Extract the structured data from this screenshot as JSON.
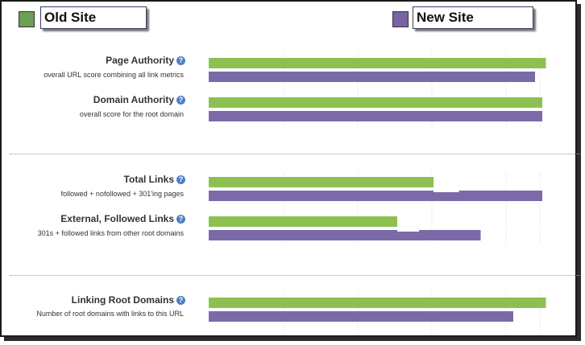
{
  "legend": {
    "old": {
      "label": "Old Site",
      "color": "#6a9f55"
    },
    "new": {
      "label": "New Site",
      "color": "#7b62a3"
    }
  },
  "metrics": [
    {
      "title": "Page Authority",
      "subtitle": "overall URL score combining all link metrics",
      "help_icon": "question-icon"
    },
    {
      "title": "Domain Authority",
      "subtitle": "overall score for the root domain",
      "help_icon": "question-icon"
    },
    {
      "title": "Total Links",
      "subtitle": "followed + nofollowed + 301'ing pages",
      "help_icon": "question-icon"
    },
    {
      "title": "External, Followed Links",
      "subtitle": "301s + followed links from other root domains",
      "help_icon": "question-icon"
    },
    {
      "title": "Linking Root Domains",
      "subtitle": "Number of root domains with links to this URL",
      "help_icon": "question-icon"
    }
  ],
  "chart_data": {
    "type": "bar",
    "orientation": "horizontal",
    "categories": [
      "Page Authority",
      "Domain Authority",
      "Total Links",
      "External, Followed Links",
      "Linking Root Domains"
    ],
    "series": [
      {
        "name": "Old Site",
        "color": "#8cc152",
        "values": [
          0.93,
          0.92,
          0.62,
          0.52,
          0.93
        ]
      },
      {
        "name": "New Site",
        "color": "#7b6aa8",
        "values": [
          0.9,
          0.92,
          0.92,
          0.75,
          0.84
        ]
      },
      {
        "name": "",
        "color": "#ffffff",
        "values": [
          null,
          null,
          0.69,
          0.58,
          null
        ]
      }
    ],
    "value_scale": "relative, 0 to 1 of bar track width; no numeric axis labels shown",
    "grid": true,
    "legend_position": "top"
  }
}
